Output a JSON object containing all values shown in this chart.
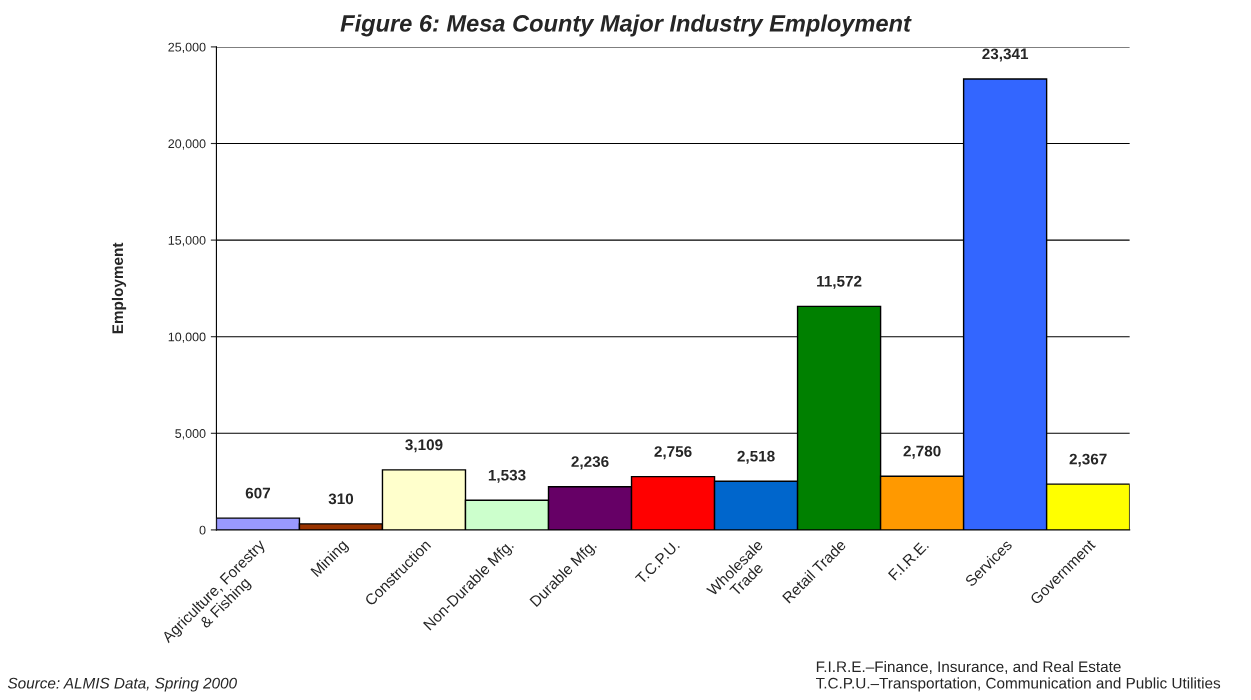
{
  "chart_data": {
    "type": "bar",
    "title": "Figure 6: Mesa County Major Industry Employment",
    "ylabel": "Employment",
    "categories": [
      "Agriculture, Forestry\n& Fishing",
      "Mining",
      "Construction",
      "Non-Durable Mfg.",
      "Durable Mfg.",
      "T.C.P.U.",
      "Wholesale\nTrade",
      "Retail Trade",
      "F.I.R.E.",
      "Services",
      "Government"
    ],
    "values": [
      607,
      310,
      3109,
      1533,
      2236,
      2756,
      2518,
      11572,
      2780,
      23341,
      2367
    ],
    "colors": [
      "#9999ff",
      "#993300",
      "#ffffcc",
      "#ccffcc",
      "#660066",
      "#ff0000",
      "#0066cc",
      "#008000",
      "#ff9900",
      "#3366ff",
      "#ffff00"
    ],
    "value_labels": [
      "607",
      "310",
      "3,109",
      "1,533",
      "2,236",
      "2,756",
      "2,518",
      "11,572",
      "2,780",
      "23,341",
      "2,367"
    ],
    "ylim": [
      0,
      25000
    ],
    "yticks": [
      {
        "value": 0,
        "label": "0"
      },
      {
        "value": 5000,
        "label": "5,000"
      },
      {
        "value": 10000,
        "label": "10,000"
      },
      {
        "value": 15000,
        "label": "15,000"
      },
      {
        "value": 20000,
        "label": "20,000"
      },
      {
        "value": 25000,
        "label": "25,000"
      }
    ],
    "grid": "y",
    "annotations": [
      "Source: ALMIS Data, Spring 2000",
      "F.I.R.E.–Finance, Insurance, and Real Estate\nT.C.P.U.–Transportation, Communication and Public Utilities"
    ]
  }
}
